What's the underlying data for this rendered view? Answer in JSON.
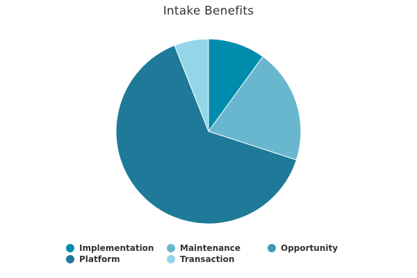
{
  "chart_data": {
    "type": "pie",
    "title": "Intake Benefits",
    "legend_position": "bottom",
    "slices": [
      {
        "label": "Implementation",
        "value": 10,
        "color": "#008cac"
      },
      {
        "label": "Maintenance",
        "value": 20,
        "color": "#69b6cf"
      },
      {
        "label": "Opportunity",
        "value": 0,
        "color": "#3a9bb6"
      },
      {
        "label": "Platform",
        "value": 64,
        "color": "#1e7a98"
      },
      {
        "label": "Transaction",
        "value": 6,
        "color": "#95d5e8"
      }
    ]
  }
}
